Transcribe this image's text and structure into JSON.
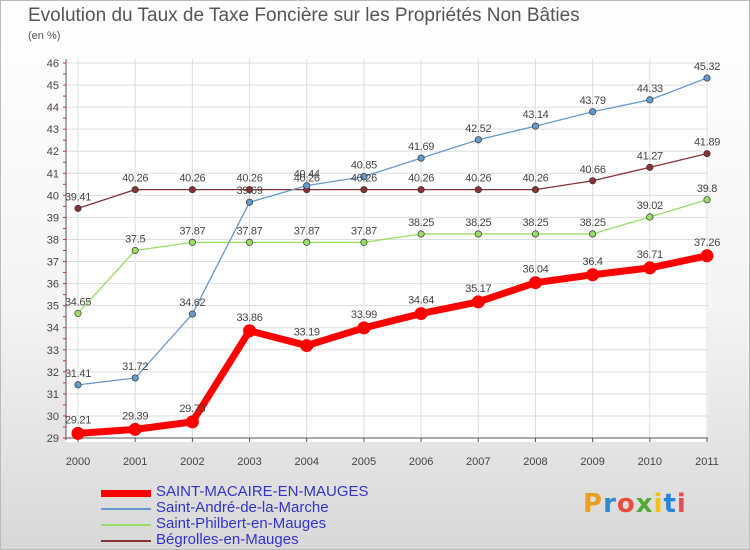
{
  "title": "Evolution du Taux de Taxe Foncière sur les Propriétés Non Bâties",
  "unit": "(en %)",
  "logo": {
    "text": "Proxiti",
    "colors": [
      "#e8a020",
      "#3388cc",
      "#e84c3d",
      "#55aa33",
      "#f0c020",
      "#2288dd",
      "#e05050"
    ]
  },
  "chart_data": {
    "type": "line",
    "x": [
      "2000",
      "2001",
      "2002",
      "2003",
      "2004",
      "2005",
      "2006",
      "2007",
      "2008",
      "2009",
      "2010",
      "2011"
    ],
    "ylim": [
      29,
      46
    ],
    "yticks": [
      "29",
      "30",
      "31",
      "32",
      "33",
      "34",
      "35",
      "36",
      "37",
      "38",
      "39",
      "40",
      "41",
      "42",
      "43",
      "44",
      "45",
      "46"
    ],
    "grid": true,
    "legend": "bottom",
    "series": [
      {
        "name": "SAINT-MACAIRE-EN-MAUGES",
        "color": "#ff0000",
        "values": [
          29.21,
          29.39,
          29.73,
          33.86,
          33.19,
          33.99,
          34.64,
          35.17,
          36.04,
          36.4,
          36.71,
          37.26
        ],
        "labels": [
          "29.21",
          "29.39",
          "29.73",
          "33.86",
          "33.19",
          "33.99",
          "34.64",
          "35.17",
          "36.04",
          "36.4",
          "36.71",
          "37.26"
        ]
      },
      {
        "name": "Saint-André-de-la-Marche",
        "color": "#6699cc",
        "values": [
          31.41,
          31.72,
          34.62,
          39.69,
          40.44,
          40.85,
          41.69,
          42.52,
          43.14,
          43.79,
          44.33,
          45.32
        ],
        "labels": [
          "31.41",
          "31.72",
          "34.62",
          "39.69",
          "40.44",
          "40.85",
          "41.69",
          "42.52",
          "43.14",
          "43.79",
          "44.33",
          "45.32"
        ]
      },
      {
        "name": "Saint-Philbert-en-Mauges",
        "color": "#99dd66",
        "values": [
          34.65,
          37.5,
          37.87,
          37.87,
          37.87,
          37.87,
          38.25,
          38.25,
          38.25,
          38.25,
          39.02,
          39.8
        ],
        "labels": [
          "34.65",
          "37.5",
          "37.87",
          "37.87",
          "37.87",
          "37.87",
          "38.25",
          "38.25",
          "38.25",
          "38.25",
          "39.02",
          "39.8"
        ]
      },
      {
        "name": "Bégrolles-en-Mauges",
        "color": "#883333",
        "values": [
          39.41,
          40.26,
          40.26,
          40.26,
          40.26,
          40.26,
          40.26,
          40.26,
          40.26,
          40.66,
          41.27,
          41.89
        ],
        "labels": [
          "39.41",
          "40.26",
          "40.26",
          "40.26",
          "40.26",
          "40.26",
          "40.26",
          "40.26",
          "40.26",
          "40.66",
          "41.27",
          "41.89"
        ]
      }
    ]
  }
}
